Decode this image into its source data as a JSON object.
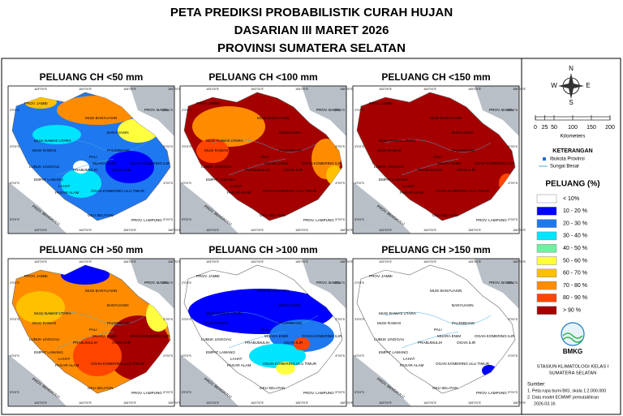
{
  "header": {
    "lines": [
      "PETA PREDIKSI PROBABILISTIK CURAH HUJAN",
      "DASARIAN III MARET 2026",
      "PROVINSI SUMATERA SELATAN"
    ]
  },
  "panels": [
    {
      "title": "PELUANG CH <50 mm"
    },
    {
      "title": "PELUANG CH <100 mm"
    },
    {
      "title": "PELUANG CH <150 mm"
    },
    {
      "title": "PELUANG CH >50 mm"
    },
    {
      "title": "PELUANG CH >100 mm"
    },
    {
      "title": "PELUANG CH >150 mm"
    }
  ],
  "map_labels": [
    "PROV. JAMBI",
    "PROV. BABEL",
    "MUSI BANYUASIN",
    "BANYUASIN",
    "MUSI RAWAS UTARA",
    "MUSI RAWAS",
    "LUBUK LINGGAU",
    "PALEMBANG",
    "PALI",
    "MUARA ENIM",
    "PRABUMULIH",
    "OGAN ILIR",
    "OGAN KOMERING ILIR",
    "EMPAT LAWANG",
    "LAHAT",
    "PAGAR ALAM",
    "OGAN KOMERING ULU TIMUR",
    "OKU SELATAN",
    "PROV. BENGKULU",
    "PROV. LAMPUNG"
  ],
  "graticule": {
    "longitudes": [
      "103°0'0\"E",
      "104°0'0\"E",
      "105°0'0\"E",
      "106°0'0\"E"
    ],
    "latitudes": [
      "2°0'0\"S",
      "3°0'0\"S",
      "4°0'0\"S",
      "5°0'0\"S"
    ]
  },
  "legend": {
    "compass": {
      "n": "N",
      "w": "W",
      "e": "E",
      "s": "S"
    },
    "scale": {
      "ticks": [
        0,
        25,
        50,
        100,
        150,
        200
      ],
      "unit": "Kilometers"
    },
    "keterangan": {
      "title": "KETERANGAN",
      "items": [
        "Ibukota Provinsi",
        "Sungai Besar"
      ]
    },
    "peluang": {
      "title": "PELUANG (%)",
      "classes": [
        {
          "label": "< 10%",
          "color": "#ffffff"
        },
        {
          "label": "10 - 20 %",
          "color": "#0000ff"
        },
        {
          "label": "20 - 30 %",
          "color": "#1e78f0"
        },
        {
          "label": "30 - 40 %",
          "color": "#00e5ff"
        },
        {
          "label": "40 - 50 %",
          "color": "#70f0a0"
        },
        {
          "label": "50 - 60 %",
          "color": "#ffff40"
        },
        {
          "label": "60 - 70 %",
          "color": "#ffc000"
        },
        {
          "label": "70 - 80 %",
          "color": "#ff8c00"
        },
        {
          "label": "80 - 90 %",
          "color": "#ff4500"
        },
        {
          "label": "> 90 %",
          "color": "#a50000"
        }
      ]
    }
  },
  "logo": {
    "text": "BMKG"
  },
  "station": [
    "STASIUN KLIMATOLOGI KELAS I",
    "SUMATERA SELATAN"
  ],
  "source": {
    "title": "Sumber:",
    "items": [
      "1. Peta rupa bumi BIG, skala 1:2.000.000",
      "2. Data model ECMWF pemutakhiran",
      "2026.03.16"
    ]
  }
}
